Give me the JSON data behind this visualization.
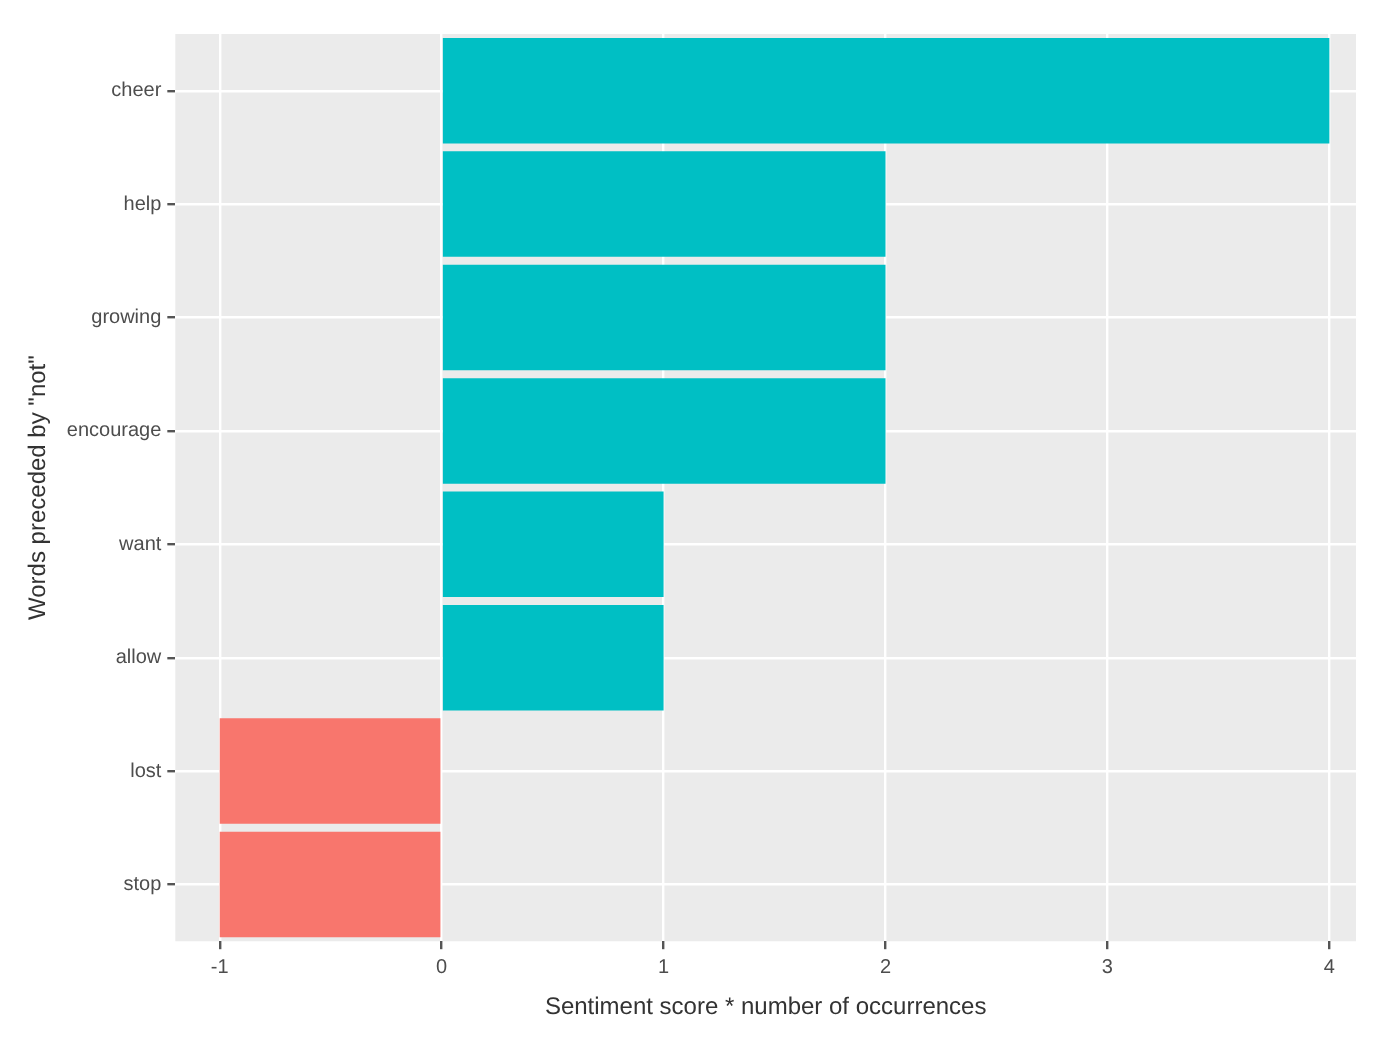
{
  "chart_data": {
    "type": "bar",
    "orientation": "horizontal",
    "xlabel": "Sentiment score * number of occurrences",
    "ylabel": "Words preceded by \"not\"",
    "categories": [
      "cheer",
      "help",
      "growing",
      "encourage",
      "want",
      "allow",
      "lost",
      "stop"
    ],
    "values": [
      4,
      2,
      2,
      2,
      1,
      1,
      -1,
      -1
    ],
    "colors": [
      "#00bfc4",
      "#00bfc4",
      "#00bfc4",
      "#00bfc4",
      "#00bfc4",
      "#00bfc4",
      "#f8766d",
      "#f8766d"
    ],
    "xlim": [
      -1.2,
      4.12
    ],
    "xticks": [
      -1,
      0,
      1,
      2,
      3,
      4
    ],
    "grid": true,
    "legend": false
  }
}
